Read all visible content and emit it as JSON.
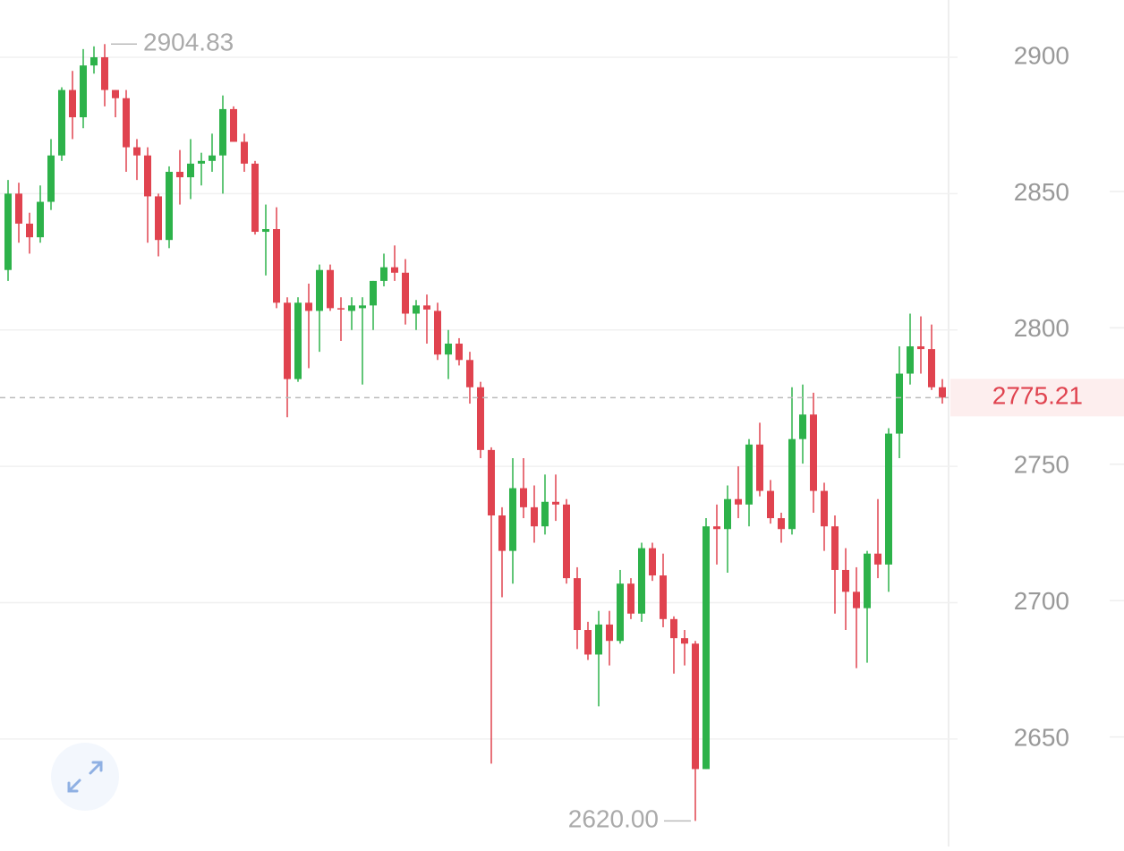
{
  "chart_data": {
    "type": "candlestick",
    "open": [
      2822,
      2850,
      2839,
      2834,
      2847,
      2864,
      2888,
      2878,
      2897,
      2900,
      2888,
      2885,
      2867,
      2864,
      2849,
      2833,
      2858,
      2856,
      2861,
      2862,
      2864,
      2881,
      2869,
      2861,
      2836,
      2837,
      2810,
      2782,
      2810,
      2807,
      2822,
      2808,
      2807,
      2808,
      2809,
      2818,
      2823,
      2821,
      2806,
      2809,
      2807,
      2791,
      2795,
      2789,
      2779,
      2756,
      2732,
      2719,
      2742,
      2735,
      2728,
      2737,
      2736,
      2709,
      2690,
      2681,
      2692,
      2686,
      2707,
      2696,
      2720,
      2710,
      2694,
      2687,
      2685,
      2639,
      2728,
      2727,
      2738,
      2736,
      2758,
      2741,
      2731,
      2727,
      2760,
      2769,
      2741,
      2728,
      2712,
      2704,
      2698,
      2718,
      2714,
      2762,
      2784,
      2794,
      2793,
      2779
    ],
    "high": [
      2855,
      2854,
      2843,
      2853,
      2870,
      2889,
      2895,
      2903,
      2904,
      2904.83,
      2888,
      2888,
      2870,
      2867,
      2850,
      2860,
      2866,
      2870,
      2865,
      2872,
      2886,
      2882,
      2872,
      2862,
      2846,
      2845,
      2812,
      2812,
      2817,
      2824,
      2824,
      2812,
      2812,
      2812,
      2818,
      2828,
      2831,
      2826,
      2811,
      2813,
      2810,
      2800,
      2797,
      2792,
      2781,
      2757,
      2735,
      2753,
      2753,
      2743,
      2747,
      2747,
      2738,
      2713,
      2693,
      2697,
      2697,
      2712,
      2709,
      2722,
      2722,
      2718,
      2695,
      2690,
      2686,
      2731,
      2736,
      2743,
      2750,
      2760,
      2766,
      2745,
      2733,
      2779,
      2780,
      2777,
      2744,
      2732,
      2720,
      2713,
      2719,
      2738,
      2764,
      2794,
      2806,
      2805,
      2802,
      2782
    ],
    "low": [
      2818,
      2832,
      2828,
      2832,
      2844,
      2862,
      2870,
      2874,
      2894,
      2882,
      2878,
      2858,
      2855,
      2832,
      2827,
      2830,
      2846,
      2848,
      2853,
      2858,
      2850,
      2869,
      2858,
      2835,
      2820,
      2808,
      2768,
      2781,
      2786,
      2792,
      2807,
      2796,
      2800,
      2780,
      2800,
      2816,
      2818,
      2802,
      2800,
      2795,
      2789,
      2782,
      2787,
      2773,
      2753,
      2641,
      2702,
      2707,
      2731,
      2722,
      2725,
      2730,
      2707,
      2683,
      2679,
      2662,
      2677,
      2685,
      2694,
      2693,
      2708,
      2691,
      2674,
      2677,
      2620,
      2639,
      2714,
      2711,
      2731,
      2728,
      2739,
      2729,
      2722,
      2725,
      2751,
      2733,
      2719,
      2696,
      2690,
      2676,
      2678,
      2709,
      2704,
      2753,
      2780,
      2784,
      2778,
      2773
    ],
    "close": [
      2850,
      2839,
      2834,
      2847,
      2864,
      2888,
      2878,
      2897,
      2900,
      2888,
      2885,
      2867,
      2864,
      2849,
      2833,
      2858,
      2856,
      2861,
      2862,
      2864,
      2881,
      2869,
      2861,
      2836,
      2837,
      2810,
      2782,
      2810,
      2807,
      2822,
      2808,
      2807.5,
      2809,
      2809,
      2818,
      2823,
      2821,
      2806,
      2809,
      2807.5,
      2791,
      2795,
      2789,
      2779,
      2756,
      2732,
      2719,
      2742,
      2735,
      2728,
      2737,
      2736,
      2709,
      2690,
      2681,
      2692,
      2686,
      2707,
      2696,
      2720,
      2710,
      2694,
      2687,
      2685,
      2639,
      2728,
      2727,
      2738,
      2736,
      2758,
      2741,
      2731,
      2727,
      2760,
      2769,
      2741,
      2728,
      2712,
      2704,
      2698,
      2718,
      2714,
      2762,
      2784,
      2794,
      2793,
      2779,
      2775.21
    ],
    "up_color": "#2db24a",
    "down_color": "#e0434f",
    "ylim": [
      2610.6,
      2921
    ],
    "yticks": [
      2650,
      2700,
      2750,
      2800,
      2850,
      2900
    ],
    "grid": true,
    "annotations": {
      "high": 2904.83,
      "low": {
        "value": 2620,
        "label": "2620.00"
      },
      "last": 2775.21
    }
  }
}
